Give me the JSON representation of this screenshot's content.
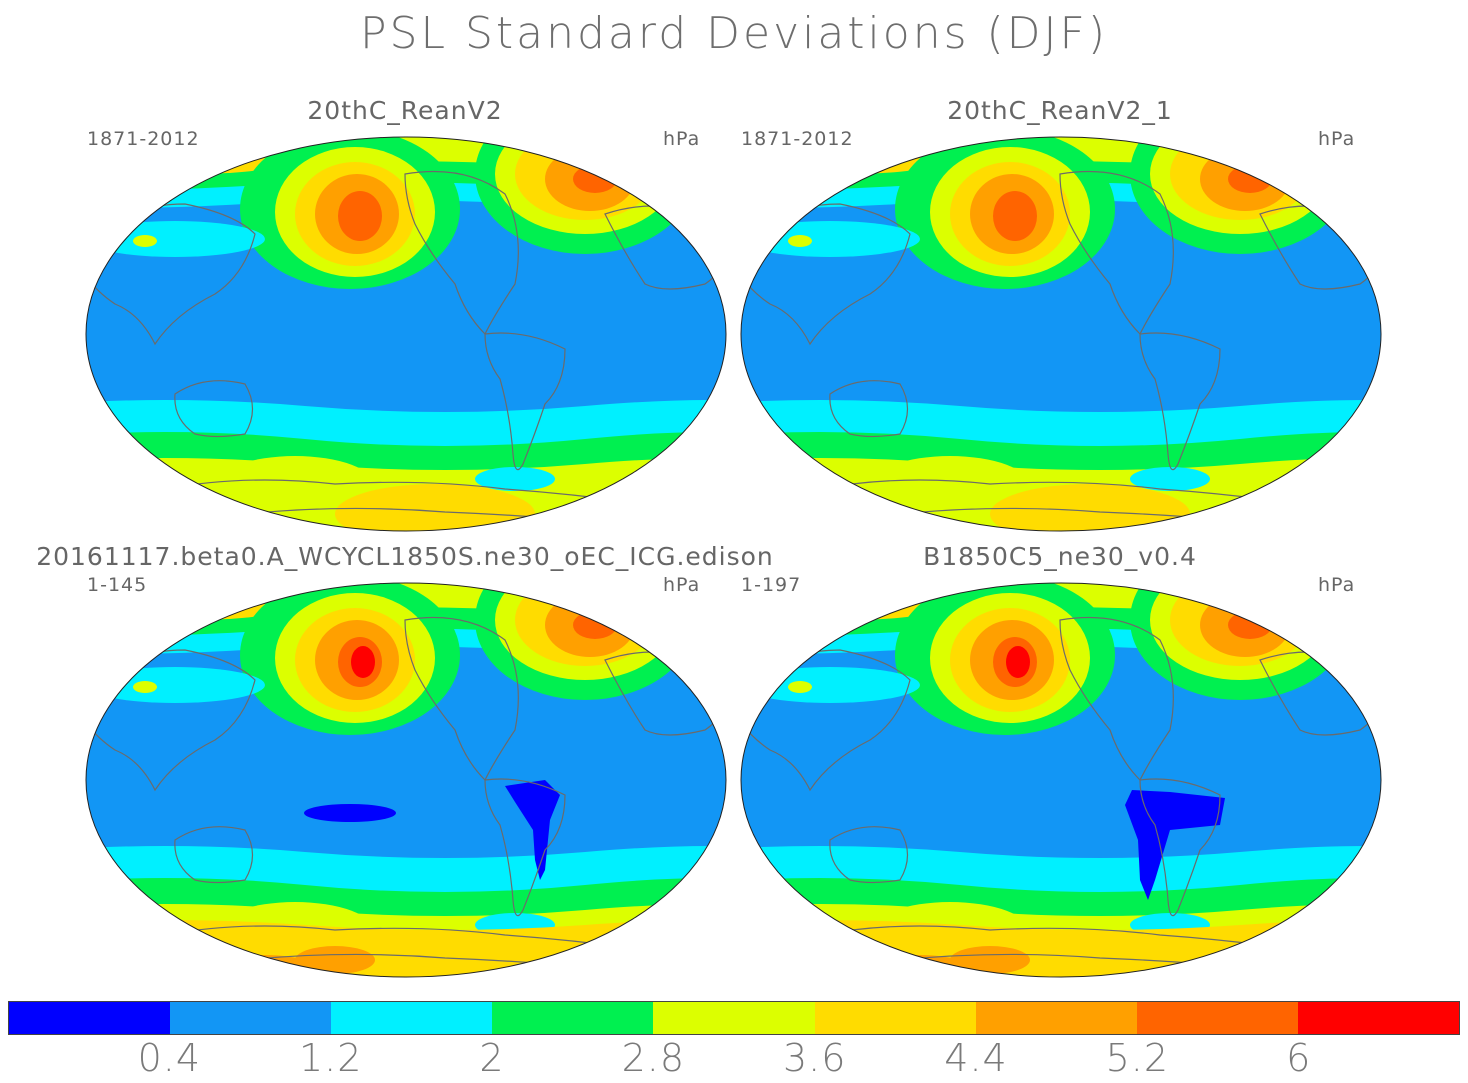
{
  "title": "PSL Standard Deviations (DJF)",
  "colorbar": {
    "colors": [
      "#0000ff",
      "#1296f5",
      "#00f0ff",
      "#00f050",
      "#dcff00",
      "#ffdc00",
      "#ffa000",
      "#ff6400",
      "#ff0000"
    ],
    "labels": [
      "0.4",
      "1.2",
      "2",
      "2.8",
      "3.6",
      "4.4",
      "5.2",
      "6"
    ]
  },
  "panels": [
    {
      "title": "20thC_ReanV2",
      "years": "1871-2012",
      "units": "hPa",
      "variant": "obs"
    },
    {
      "title": "20thC_ReanV2_1",
      "years": "1871-2012",
      "units": "hPa",
      "variant": "obs"
    },
    {
      "title": "20161117.beta0.A_WCYCL1850S.ne30_oEC_ICG.edison",
      "years": "1-145",
      "units": "hPa",
      "variant": "model1"
    },
    {
      "title": "B1850C5_ne30_v0.4",
      "years": "1-197",
      "units": "hPa",
      "variant": "model2"
    }
  ]
}
